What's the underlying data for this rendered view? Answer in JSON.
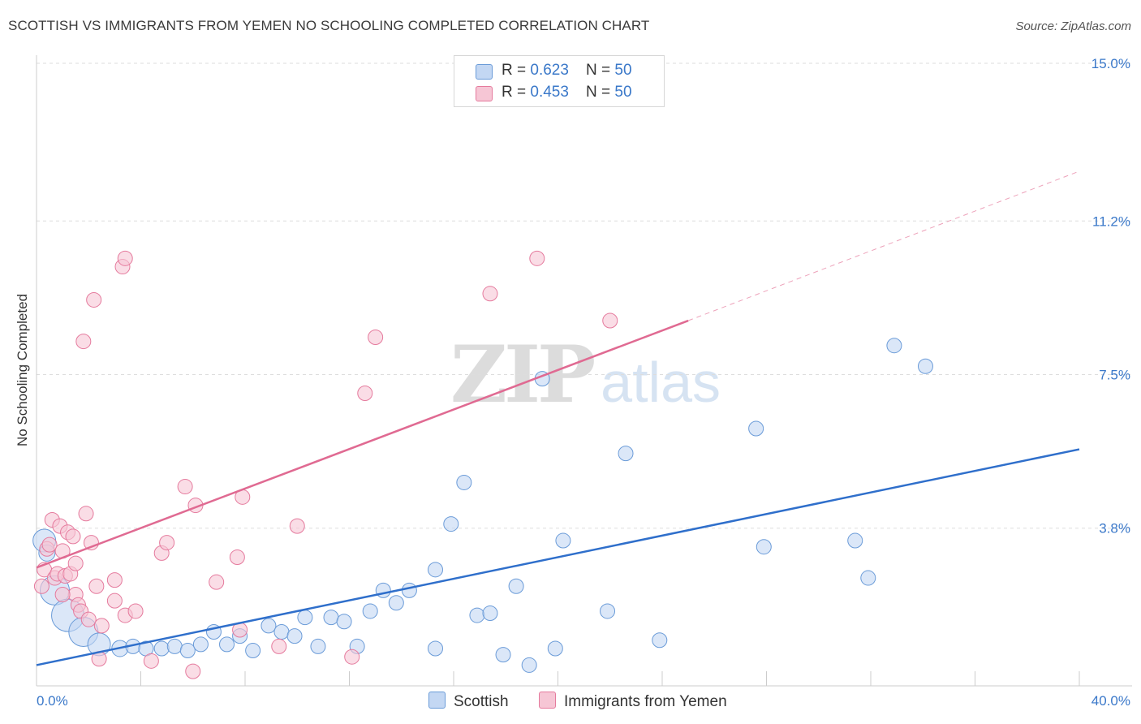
{
  "header": {
    "title": "SCOTTISH VS IMMIGRANTS FROM YEMEN NO SCHOOLING COMPLETED CORRELATION CHART",
    "source": "Source: ZipAtlas.com"
  },
  "watermark": {
    "zip": "ZIP",
    "atlas": "atlas"
  },
  "legend": {
    "series": [
      {
        "r_label": "R = ",
        "r_value": "0.623",
        "n_label": "N = ",
        "n_value": "50"
      },
      {
        "r_label": "R = ",
        "r_value": "0.453",
        "n_label": "N = ",
        "n_value": "50"
      }
    ]
  },
  "chart_data": {
    "type": "scatter",
    "title": "SCOTTISH VS IMMIGRANTS FROM YEMEN NO SCHOOLING COMPLETED CORRELATION CHART",
    "xlabel": "",
    "ylabel": "No Schooling Completed",
    "xlim": [
      0,
      40
    ],
    "ylim": [
      0,
      15
    ],
    "x_tick_labels": [
      {
        "value": 0,
        "label": "0.0%"
      },
      {
        "value": 40,
        "label": "40.0%"
      }
    ],
    "y_tick_labels": [
      {
        "value": 3.8,
        "label": "3.8%"
      },
      {
        "value": 7.5,
        "label": "7.5%"
      },
      {
        "value": 11.2,
        "label": "11.2%"
      },
      {
        "value": 15.0,
        "label": "15.0%"
      }
    ],
    "grid": true,
    "legend_position": "top-center",
    "series": [
      {
        "name": "Scottish",
        "color": "#6a9bd8",
        "fill": "#c3d7f3",
        "trend": {
          "x": [
            0,
            40
          ],
          "y": [
            0.5,
            5.7
          ]
        },
        "points": [
          {
            "x": 0.3,
            "y": 3.5,
            "s": 14
          },
          {
            "x": 0.7,
            "y": 2.3,
            "s": 18
          },
          {
            "x": 1.2,
            "y": 1.7,
            "s": 20
          },
          {
            "x": 1.8,
            "y": 1.3,
            "s": 18
          },
          {
            "x": 2.4,
            "y": 1.0,
            "s": 14
          },
          {
            "x": 3.2,
            "y": 0.9,
            "s": 10
          },
          {
            "x": 3.7,
            "y": 0.95,
            "s": 9
          },
          {
            "x": 4.2,
            "y": 0.9,
            "s": 9
          },
          {
            "x": 4.8,
            "y": 0.9,
            "s": 9
          },
          {
            "x": 5.3,
            "y": 0.95,
            "s": 9
          },
          {
            "x": 5.8,
            "y": 0.85,
            "s": 9
          },
          {
            "x": 6.3,
            "y": 1.0,
            "s": 9
          },
          {
            "x": 6.8,
            "y": 1.3,
            "s": 9
          },
          {
            "x": 7.3,
            "y": 1.0,
            "s": 9
          },
          {
            "x": 7.8,
            "y": 1.2,
            "s": 9
          },
          {
            "x": 8.3,
            "y": 0.85,
            "s": 9
          },
          {
            "x": 8.9,
            "y": 1.45,
            "s": 9
          },
          {
            "x": 9.4,
            "y": 1.3,
            "s": 9
          },
          {
            "x": 9.9,
            "y": 1.2,
            "s": 9
          },
          {
            "x": 10.3,
            "y": 1.65,
            "s": 9
          },
          {
            "x": 10.8,
            "y": 0.95,
            "s": 9
          },
          {
            "x": 11.3,
            "y": 1.65,
            "s": 9
          },
          {
            "x": 11.8,
            "y": 1.55,
            "s": 9
          },
          {
            "x": 12.3,
            "y": 0.95,
            "s": 9
          },
          {
            "x": 12.8,
            "y": 1.8,
            "s": 9
          },
          {
            "x": 13.3,
            "y": 2.3,
            "s": 9
          },
          {
            "x": 13.8,
            "y": 2.0,
            "s": 9
          },
          {
            "x": 14.3,
            "y": 2.3,
            "s": 9
          },
          {
            "x": 15.3,
            "y": 2.8,
            "s": 9
          },
          {
            "x": 15.3,
            "y": 0.9,
            "s": 9
          },
          {
            "x": 15.9,
            "y": 3.9,
            "s": 9
          },
          {
            "x": 16.4,
            "y": 4.9,
            "s": 9
          },
          {
            "x": 16.9,
            "y": 1.7,
            "s": 9
          },
          {
            "x": 17.4,
            "y": 1.75,
            "s": 9
          },
          {
            "x": 17.9,
            "y": 0.75,
            "s": 9
          },
          {
            "x": 18.4,
            "y": 2.4,
            "s": 9
          },
          {
            "x": 18.9,
            "y": 0.5,
            "s": 9
          },
          {
            "x": 19.4,
            "y": 7.4,
            "s": 9
          },
          {
            "x": 19.9,
            "y": 0.9,
            "s": 9
          },
          {
            "x": 20.2,
            "y": 3.5,
            "s": 9
          },
          {
            "x": 21.9,
            "y": 1.8,
            "s": 9
          },
          {
            "x": 22.6,
            "y": 5.6,
            "s": 9
          },
          {
            "x": 23.9,
            "y": 1.1,
            "s": 9
          },
          {
            "x": 27.6,
            "y": 6.2,
            "s": 9
          },
          {
            "x": 27.9,
            "y": 3.35,
            "s": 9
          },
          {
            "x": 31.4,
            "y": 3.5,
            "s": 9
          },
          {
            "x": 31.9,
            "y": 2.6,
            "s": 9
          },
          {
            "x": 32.9,
            "y": 8.2,
            "s": 9
          },
          {
            "x": 34.1,
            "y": 7.7,
            "s": 9
          },
          {
            "x": 0.4,
            "y": 3.2,
            "s": 10
          }
        ]
      },
      {
        "name": "Immigrants from Yemen",
        "color": "#e57a9d",
        "fill": "#f6c6d5",
        "trend": {
          "x": [
            0,
            25
          ],
          "y": [
            2.85,
            8.8
          ]
        },
        "trend_dashed_extension": {
          "x": [
            25,
            40
          ],
          "y": [
            8.8,
            12.4
          ]
        },
        "points": [
          {
            "x": 0.2,
            "y": 2.4,
            "s": 9
          },
          {
            "x": 0.3,
            "y": 2.8,
            "s": 9
          },
          {
            "x": 0.4,
            "y": 3.3,
            "s": 9
          },
          {
            "x": 0.5,
            "y": 3.4,
            "s": 9
          },
          {
            "x": 0.6,
            "y": 4.0,
            "s": 9
          },
          {
            "x": 0.7,
            "y": 2.6,
            "s": 9
          },
          {
            "x": 0.8,
            "y": 2.7,
            "s": 9
          },
          {
            "x": 0.9,
            "y": 3.85,
            "s": 9
          },
          {
            "x": 1.0,
            "y": 3.25,
            "s": 9
          },
          {
            "x": 1.1,
            "y": 2.65,
            "s": 9
          },
          {
            "x": 1.2,
            "y": 3.7,
            "s": 9
          },
          {
            "x": 1.3,
            "y": 2.7,
            "s": 9
          },
          {
            "x": 1.4,
            "y": 3.6,
            "s": 9
          },
          {
            "x": 1.5,
            "y": 2.2,
            "s": 9
          },
          {
            "x": 1.5,
            "y": 2.95,
            "s": 9
          },
          {
            "x": 1.6,
            "y": 1.95,
            "s": 9
          },
          {
            "x": 1.7,
            "y": 1.8,
            "s": 9
          },
          {
            "x": 1.8,
            "y": 8.3,
            "s": 9
          },
          {
            "x": 1.9,
            "y": 4.15,
            "s": 9
          },
          {
            "x": 2.0,
            "y": 1.6,
            "s": 9
          },
          {
            "x": 2.1,
            "y": 3.45,
            "s": 9
          },
          {
            "x": 2.2,
            "y": 9.3,
            "s": 9
          },
          {
            "x": 2.3,
            "y": 2.4,
            "s": 9
          },
          {
            "x": 2.4,
            "y": 0.65,
            "s": 9
          },
          {
            "x": 2.5,
            "y": 1.45,
            "s": 9
          },
          {
            "x": 3.0,
            "y": 2.55,
            "s": 9
          },
          {
            "x": 3.0,
            "y": 2.05,
            "s": 9
          },
          {
            "x": 3.3,
            "y": 10.1,
            "s": 9
          },
          {
            "x": 3.4,
            "y": 10.3,
            "s": 9
          },
          {
            "x": 3.4,
            "y": 1.7,
            "s": 9
          },
          {
            "x": 3.8,
            "y": 1.8,
            "s": 9
          },
          {
            "x": 4.4,
            "y": 0.6,
            "s": 9
          },
          {
            "x": 4.8,
            "y": 3.2,
            "s": 9
          },
          {
            "x": 5.0,
            "y": 3.45,
            "s": 9
          },
          {
            "x": 5.7,
            "y": 4.8,
            "s": 9
          },
          {
            "x": 6.0,
            "y": 0.35,
            "s": 9
          },
          {
            "x": 6.1,
            "y": 4.35,
            "s": 9
          },
          {
            "x": 6.9,
            "y": 2.5,
            "s": 9
          },
          {
            "x": 7.7,
            "y": 3.1,
            "s": 9
          },
          {
            "x": 7.8,
            "y": 1.35,
            "s": 9
          },
          {
            "x": 7.9,
            "y": 4.55,
            "s": 9
          },
          {
            "x": 9.3,
            "y": 0.95,
            "s": 9
          },
          {
            "x": 10.0,
            "y": 3.85,
            "s": 9
          },
          {
            "x": 12.1,
            "y": 0.7,
            "s": 9
          },
          {
            "x": 12.6,
            "y": 7.05,
            "s": 9
          },
          {
            "x": 13.0,
            "y": 8.4,
            "s": 9
          },
          {
            "x": 17.4,
            "y": 9.45,
            "s": 9
          },
          {
            "x": 19.2,
            "y": 10.3,
            "s": 9
          },
          {
            "x": 22.0,
            "y": 8.8,
            "s": 9
          },
          {
            "x": 1.0,
            "y": 2.2,
            "s": 9
          }
        ]
      }
    ]
  }
}
